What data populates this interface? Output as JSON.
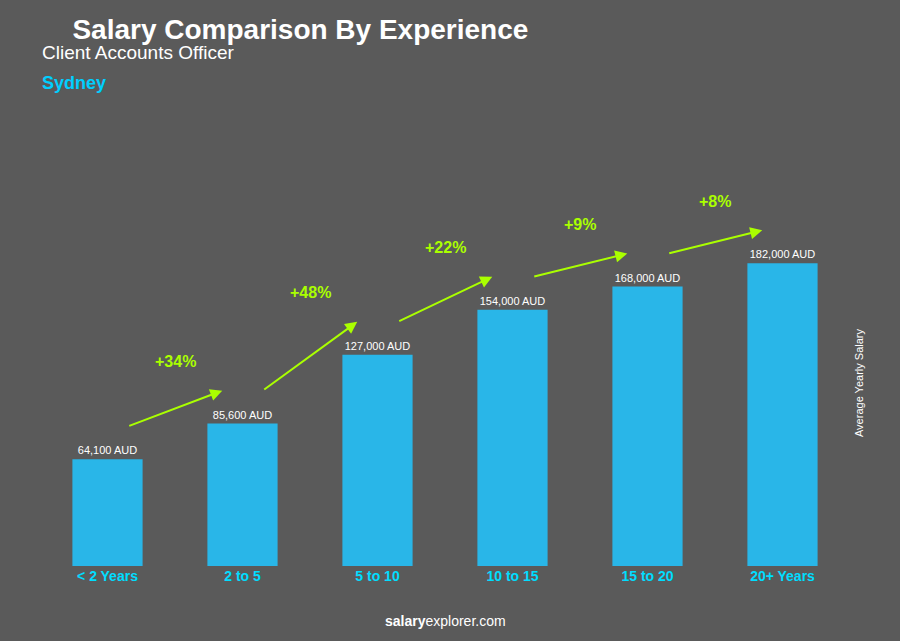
{
  "chart_data": {
    "type": "bar",
    "title": "Salary Comparison By Experience",
    "subtitle": [
      "Client Accounts Officer",
      "Sydney"
    ],
    "categories": [
      "< 2 Years",
      "2 to 5",
      "5 to 10",
      "10 to 15",
      "15 to 20",
      "20+ Years"
    ],
    "values": [
      64100,
      85600,
      127000,
      154000,
      168000,
      182000
    ],
    "value_labels": [
      "64,100 AUD",
      "85,600 AUD",
      "127,000 AUD",
      "154,000 AUD",
      "168,000 AUD",
      "182,000 AUD"
    ],
    "data_labels": true,
    "color": "#29b6e8",
    "ylabel": "Average Yearly Salary",
    "ylim": [
      0,
      220000
    ],
    "tick_labels": "x",
    "grid": false,
    "annotations": [
      "+34%",
      "+48%",
      "+22%",
      "+9%",
      "+8%",
      "salary",
      "explorer.com"
    ]
  }
}
